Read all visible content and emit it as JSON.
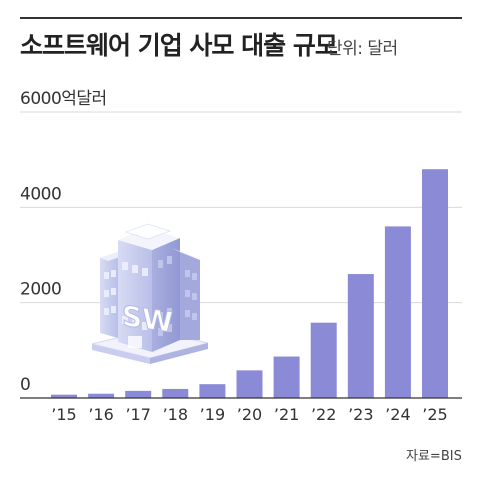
{
  "header": {
    "title": "소프트웨어 기업 사모 대출 규모",
    "unit": "단위: 달러"
  },
  "footer": {
    "source": "자료=BIS"
  },
  "colors": {
    "bar": "#8b8ad6",
    "grid": "#d9d9d9",
    "axis": "#333333"
  },
  "illustration": {
    "building_sign": "SW"
  },
  "chart_data": {
    "type": "bar",
    "title": "소프트웨어 기업 사모 대출 규모",
    "xlabel": "",
    "ylabel": "",
    "unit": "단위: 달러",
    "categories": [
      "’15",
      "’16",
      "’17",
      "’18",
      "’19",
      "’20",
      "’21",
      "’22",
      "’23",
      "’24",
      "’25"
    ],
    "values": [
      70,
      90,
      150,
      190,
      290,
      580,
      870,
      1580,
      2600,
      3600,
      4800
    ],
    "ylim": [
      0,
      6000
    ],
    "yticks": [
      0,
      2000,
      4000,
      6000
    ],
    "ytick_labels": [
      "0",
      "2000",
      "4000",
      "6000억달러"
    ],
    "grid": true,
    "legend": "none"
  }
}
